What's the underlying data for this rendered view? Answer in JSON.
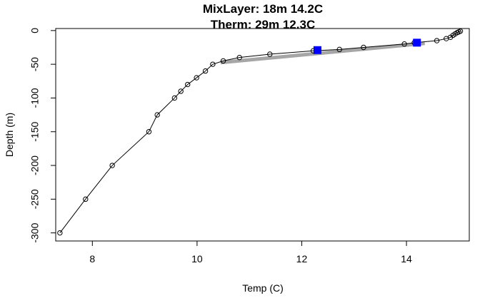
{
  "chart_data": {
    "type": "line",
    "title": "MixLayer: 18m 14.2C",
    "subtitle": "Therm: 29m 12.3C",
    "xlabel": "Temp (C)",
    "ylabel": "Depth (m)",
    "xlim": [
      7.3,
      15.2
    ],
    "ylim": [
      -312,
      3
    ],
    "xticks": [
      8,
      10,
      12,
      14
    ],
    "yticks": [
      0,
      -50,
      -100,
      -150,
      -200,
      -250,
      -300
    ],
    "grid": false,
    "profile": {
      "x": [
        15.03,
        15.0,
        14.97,
        14.93,
        14.89,
        14.84,
        14.76,
        14.58,
        14.15,
        13.96,
        13.18,
        12.72,
        12.22,
        11.39,
        10.81,
        10.5,
        10.3,
        10.16,
        9.99,
        9.82,
        9.69,
        9.57,
        9.24,
        9.08,
        8.38,
        7.87,
        7.38
      ],
      "y": [
        -1,
        -2,
        -3,
        -5,
        -7,
        -10,
        -12,
        -15,
        -18,
        -20,
        -25,
        -28,
        -30,
        -35,
        -40,
        -45,
        -50,
        -60,
        -70,
        -80,
        -90,
        -100,
        -125,
        -150,
        -200,
        -250,
        -300
      ]
    },
    "thermocline_fit": {
      "color": "#a6a6a6",
      "x": [
        10.45,
        14.35
      ],
      "y": [
        -47.5,
        -19
      ]
    },
    "markers": {
      "color": "#0000ff",
      "shape": "square",
      "points": [
        {
          "x": 14.2,
          "y": -18
        },
        {
          "x": 12.3,
          "y": -29
        }
      ]
    }
  }
}
